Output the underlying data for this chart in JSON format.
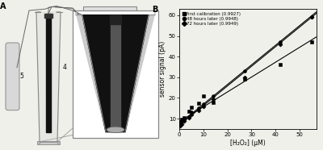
{
  "panel_b": {
    "series": [
      {
        "label": "first calibration (0.9927)",
        "marker": "s",
        "x": [
          0.5,
          1,
          2,
          4,
          5,
          8,
          10,
          14,
          27,
          42,
          55
        ],
        "y": [
          8.5,
          9.5,
          10.5,
          13.5,
          15.5,
          17.5,
          21,
          18,
          29,
          36,
          47
        ],
        "slope": 0.72,
        "intercept": 8.5
      },
      {
        "label": "48 hours later (0.9948)",
        "marker": "o",
        "x": [
          0.5,
          1,
          2,
          4,
          5,
          8,
          10,
          14,
          27,
          42,
          55
        ],
        "y": [
          7.5,
          8.5,
          9.5,
          11,
          13,
          15,
          17,
          21,
          33,
          47,
          59
        ],
        "slope": 0.95,
        "intercept": 7.5
      },
      {
        "label": "72 hours later (0.9949)",
        "marker": "D",
        "x": [
          0.5,
          1,
          2,
          4,
          5,
          8,
          10,
          14,
          27,
          42,
          55
        ],
        "y": [
          6.5,
          7.5,
          9,
          10.5,
          12,
          14,
          16,
          19.5,
          30,
          46,
          59
        ],
        "slope": 0.95,
        "intercept": 6.8
      }
    ],
    "xlabel": "[H₂O₂] (μM)",
    "ylabel": "sensor signal (pA)",
    "xlim": [
      0,
      57
    ],
    "ylim": [
      5,
      63
    ],
    "yticks": [
      10,
      20,
      30,
      40,
      50,
      60
    ],
    "xticks": [
      0,
      10,
      20,
      30,
      40,
      50
    ]
  },
  "background_color": "#f0f0eb"
}
